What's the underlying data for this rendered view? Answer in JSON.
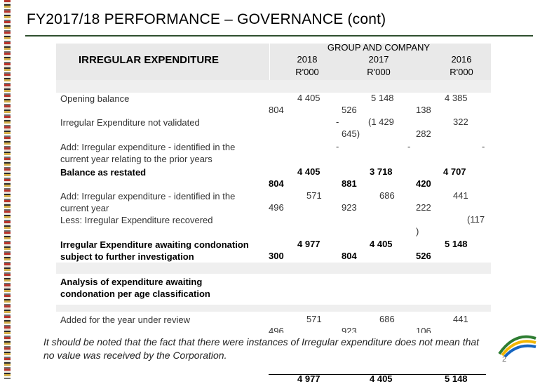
{
  "title": "FY2017/18 PERFORMANCE – GOVERNANCE (cont)",
  "header": {
    "left_label": "IRREGULAR EXPENDITURE",
    "group_label": "GROUP AND COMPANY",
    "years": [
      "2018",
      "2017",
      "2016"
    ],
    "unit": "R'000"
  },
  "rows": [
    {
      "label": "Opening balance",
      "v2018": [
        "4 405",
        "804"
      ],
      "v2017": [
        "5 148",
        "526"
      ],
      "v2016": [
        "4 385",
        "138"
      ]
    },
    {
      "label": "Irregular Expenditure not validated",
      "v2018": [
        "-"
      ],
      "v2017": [
        "(1 429",
        "645)"
      ],
      "v2016": [
        "322",
        "282"
      ]
    },
    {
      "label": "Add: Irregular expenditure - identified in the current year relating to the prior years",
      "v2018": [
        "-"
      ],
      "v2017": [
        "-"
      ],
      "v2016": [
        "-"
      ]
    },
    {
      "label": "Balance as restated",
      "v2018": [
        "4 405",
        "804"
      ],
      "v2017": [
        "3 718",
        "881"
      ],
      "v2016": [
        "4 707",
        "420"
      ]
    },
    {
      "label": "Add: Irregular expenditure - identified in the current year",
      "v2018": [
        "571",
        "496"
      ],
      "v2017": [
        "686",
        "923"
      ],
      "v2016": [
        "441",
        "222"
      ]
    },
    {
      "label": "Less: Irregular Expenditure recovered",
      "v2016": [
        "(117",
        ")"
      ]
    },
    {
      "label": "Irregular Expenditure awaiting condonation subject to further investigation",
      "v2018": [
        "4 977",
        "300"
      ],
      "v2017": [
        "4 405",
        "804"
      ],
      "v2016": [
        "5 148",
        "526"
      ]
    },
    {
      "label": "Analysis of expenditure awaiting condonation per age classification"
    },
    {
      "label": "Added for the year under review",
      "v2018": [
        "571",
        "496"
      ],
      "v2017": [
        "686",
        "923"
      ],
      "v2016": [
        "441",
        "106"
      ]
    }
  ],
  "bottom_totals": [
    "4 977",
    "4 405",
    "5 148"
  ],
  "note": "It should be noted that the fact that there were instances of Irregular expenditure does not mean that no value was received by the Corporation.",
  "page_number": "2",
  "colors": {
    "title_rule": "#2f4f2f",
    "header_fill": "#e9e9e9",
    "band_fill": "#efefef"
  }
}
